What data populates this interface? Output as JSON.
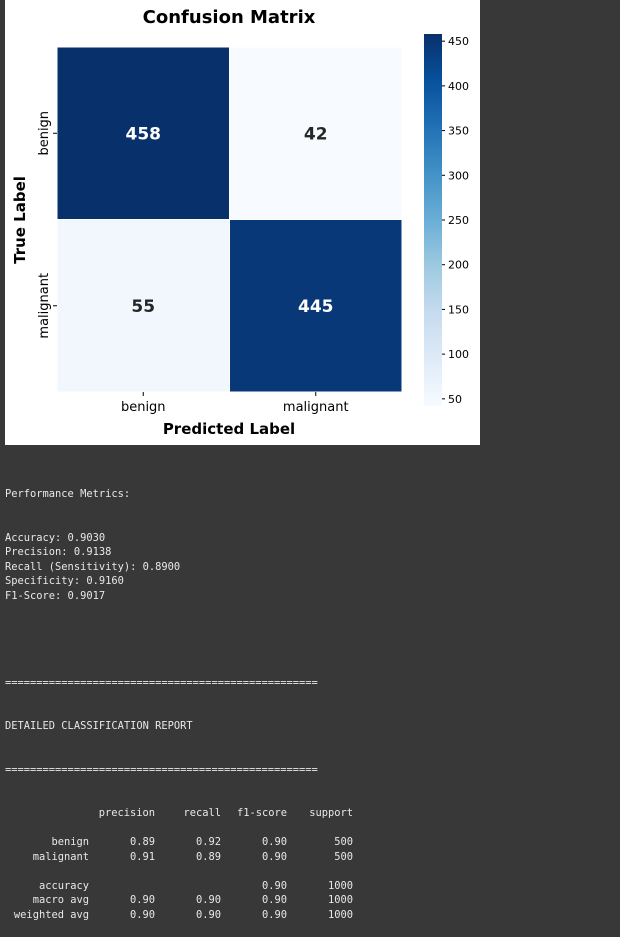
{
  "chart_data": {
    "type": "heatmap",
    "title": "Confusion Matrix",
    "xlabel": "Predicted Label",
    "ylabel": "True Label",
    "x_categories": [
      "benign",
      "malignant"
    ],
    "y_categories": [
      "benign",
      "malignant"
    ],
    "values": [
      [
        458,
        42
      ],
      [
        55,
        445
      ]
    ],
    "colormap": "Blues",
    "color_min": 42,
    "color_max": 458,
    "colorbar_ticks": [
      50,
      100,
      150,
      200,
      250,
      300,
      350,
      400,
      450
    ],
    "annotations": true
  },
  "console": {
    "metrics_header": "Performance Metrics:",
    "metrics": [
      "Accuracy: 0.9030",
      "Precision: 0.9138",
      "Recall (Sensitivity): 0.8900",
      "Specificity: 0.9160",
      "F1-Score: 0.9017"
    ],
    "separator": "==================================================",
    "report_title": "DETAILED CLASSIFICATION REPORT",
    "report_columns": [
      "precision",
      "recall",
      "f1-score",
      "support"
    ],
    "report_rows": [
      [
        "benign",
        "0.89",
        "0.92",
        "0.90",
        "500"
      ],
      [
        "malignant",
        "0.91",
        "0.89",
        "0.90",
        "500"
      ],
      [
        "",
        "",
        "",
        "",
        ""
      ],
      [
        "accuracy",
        "",
        "",
        "0.90",
        "1000"
      ],
      [
        "macro avg",
        "0.90",
        "0.90",
        "0.90",
        "1000"
      ],
      [
        "weighted avg",
        "0.90",
        "0.90",
        "0.90",
        "1000"
      ]
    ]
  }
}
